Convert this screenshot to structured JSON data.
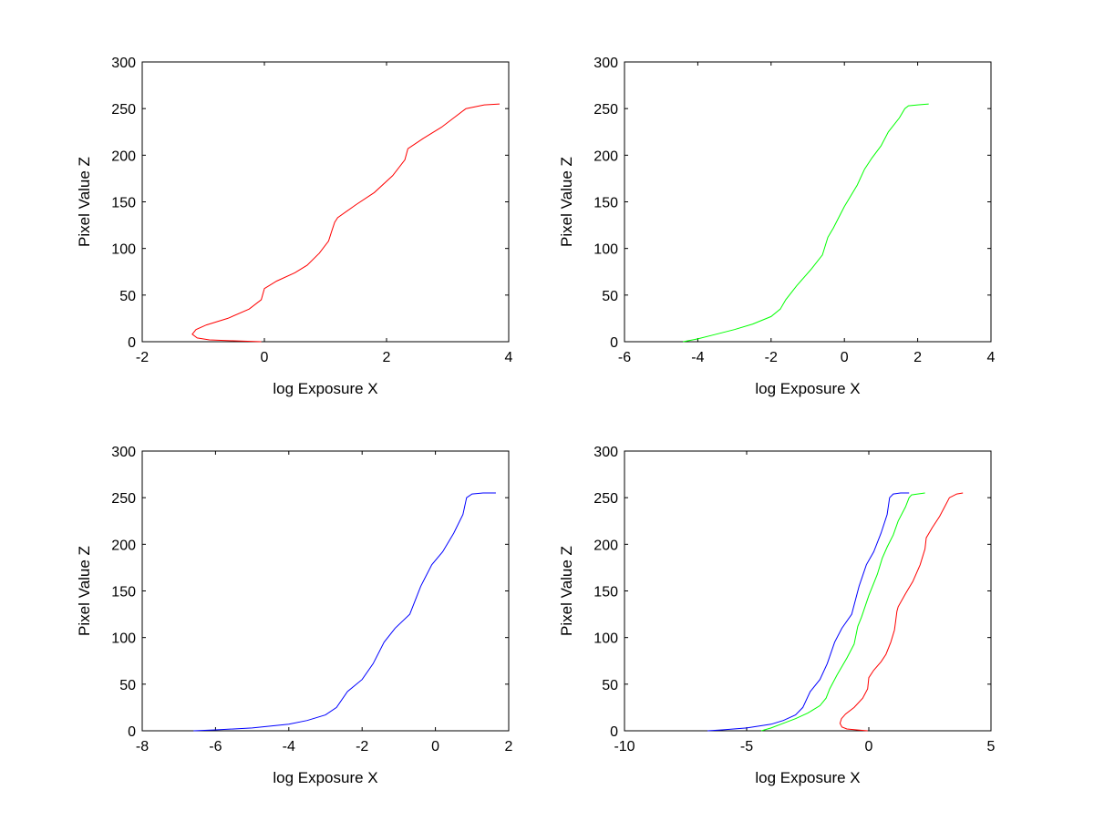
{
  "chart_data": [
    {
      "type": "line",
      "xlabel": "log Exposure X",
      "ylabel": "Pixel Value Z",
      "xlim": [
        -2,
        4
      ],
      "ylim": [
        0,
        300
      ],
      "xticks": [
        "-2",
        "0",
        "2",
        "4"
      ],
      "yticks": [
        "0",
        "50",
        "100",
        "150",
        "200",
        "250",
        "300"
      ],
      "grid": false,
      "series": [
        {
          "color": "#ff0000",
          "x": [
            -0.05,
            -0.5,
            -0.9,
            -1.1,
            -1.18,
            -1.12,
            -0.95,
            -0.6,
            -0.25,
            -0.05,
            0.0,
            0.2,
            0.5,
            0.7,
            0.9,
            1.05,
            1.1,
            1.15,
            1.2,
            1.5,
            1.8,
            2.1,
            2.3,
            2.35,
            2.6,
            2.9,
            3.1,
            3.3,
            3.6,
            3.85
          ],
          "y": [
            0,
            1,
            2,
            4,
            8,
            13,
            18,
            25,
            35,
            45,
            57,
            65,
            74,
            82,
            95,
            108,
            118,
            128,
            133,
            147,
            160,
            178,
            195,
            207,
            218,
            230,
            240,
            250,
            254,
            255
          ]
        }
      ]
    },
    {
      "type": "line",
      "xlabel": "log Exposure X",
      "ylabel": "Pixel Value Z",
      "xlim": [
        -6,
        4
      ],
      "ylim": [
        0,
        300
      ],
      "xticks": [
        "-6",
        "-4",
        "-2",
        "0",
        "2",
        "4"
      ],
      "yticks": [
        "0",
        "50",
        "100",
        "150",
        "200",
        "250",
        "300"
      ],
      "grid": false,
      "series": [
        {
          "color": "#00ff00",
          "x": [
            -4.4,
            -4.0,
            -3.6,
            -3.0,
            -2.5,
            -2.0,
            -1.75,
            -1.6,
            -1.3,
            -0.9,
            -0.6,
            -0.45,
            -0.3,
            0.0,
            0.35,
            0.55,
            0.75,
            1.0,
            1.2,
            1.5,
            1.65,
            1.75,
            2.0,
            2.3
          ],
          "y": [
            0,
            3,
            7,
            13,
            19,
            27,
            35,
            45,
            60,
            78,
            93,
            112,
            122,
            145,
            168,
            185,
            197,
            210,
            225,
            240,
            250,
            253,
            254,
            255
          ]
        }
      ]
    },
    {
      "type": "line",
      "xlabel": "log Exposure X",
      "ylabel": "Pixel Value Z",
      "xlim": [
        -8,
        2
      ],
      "ylim": [
        0,
        300
      ],
      "xticks": [
        "-8",
        "-6",
        "-4",
        "-2",
        "0",
        "2"
      ],
      "yticks": [
        "0",
        "50",
        "100",
        "150",
        "200",
        "250",
        "300"
      ],
      "grid": false,
      "series": [
        {
          "color": "#0000ff",
          "x": [
            -6.6,
            -6.0,
            -5.0,
            -4.0,
            -3.5,
            -3.0,
            -2.7,
            -2.4,
            -2.0,
            -1.7,
            -1.4,
            -1.1,
            -0.7,
            -0.4,
            -0.1,
            0.2,
            0.5,
            0.75,
            0.85,
            1.0,
            1.3,
            1.65
          ],
          "y": [
            0,
            1,
            3,
            7,
            11,
            17,
            25,
            42,
            55,
            72,
            95,
            110,
            125,
            155,
            178,
            192,
            212,
            232,
            250,
            254,
            255,
            255
          ]
        }
      ]
    },
    {
      "type": "line",
      "xlabel": "log Exposure X",
      "ylabel": "Pixel Value Z",
      "xlim": [
        -10,
        5
      ],
      "ylim": [
        0,
        300
      ],
      "xticks": [
        "-10",
        "-5",
        "0",
        "5"
      ],
      "yticks": [
        "0",
        "50",
        "100",
        "150",
        "200",
        "250",
        "300"
      ],
      "grid": false,
      "series": [
        {
          "color": "#0000ff",
          "x": [
            -6.6,
            -6.0,
            -5.0,
            -4.0,
            -3.5,
            -3.0,
            -2.7,
            -2.4,
            -2.0,
            -1.7,
            -1.4,
            -1.1,
            -0.7,
            -0.4,
            -0.1,
            0.2,
            0.5,
            0.75,
            0.85,
            1.0,
            1.3,
            1.65
          ],
          "y": [
            0,
            1,
            3,
            7,
            11,
            17,
            25,
            42,
            55,
            72,
            95,
            110,
            125,
            155,
            178,
            192,
            212,
            232,
            250,
            254,
            255,
            255
          ]
        },
        {
          "color": "#00ff00",
          "x": [
            -4.4,
            -4.0,
            -3.6,
            -3.0,
            -2.5,
            -2.0,
            -1.75,
            -1.6,
            -1.3,
            -0.9,
            -0.6,
            -0.45,
            -0.3,
            0.0,
            0.35,
            0.55,
            0.75,
            1.0,
            1.2,
            1.5,
            1.65,
            1.75,
            2.0,
            2.3
          ],
          "y": [
            0,
            3,
            7,
            13,
            19,
            27,
            35,
            45,
            60,
            78,
            93,
            112,
            122,
            145,
            168,
            185,
            197,
            210,
            225,
            240,
            250,
            253,
            254,
            255
          ]
        },
        {
          "color": "#ff0000",
          "x": [
            -0.05,
            -0.5,
            -0.9,
            -1.1,
            -1.18,
            -1.12,
            -0.95,
            -0.6,
            -0.25,
            -0.05,
            0.0,
            0.2,
            0.5,
            0.7,
            0.9,
            1.05,
            1.1,
            1.15,
            1.2,
            1.5,
            1.8,
            2.1,
            2.3,
            2.35,
            2.6,
            2.9,
            3.1,
            3.3,
            3.6,
            3.85
          ],
          "y": [
            0,
            1,
            2,
            4,
            8,
            13,
            18,
            25,
            35,
            45,
            57,
            65,
            74,
            82,
            95,
            108,
            118,
            128,
            133,
            147,
            160,
            178,
            195,
            207,
            218,
            230,
            240,
            250,
            254,
            255
          ]
        }
      ]
    }
  ]
}
